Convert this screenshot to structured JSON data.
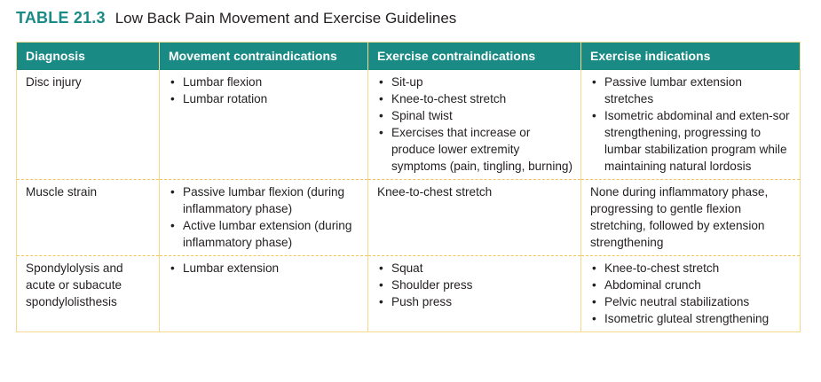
{
  "table": {
    "number": "TABLE 21.3",
    "title": "Low Back Pain Movement and Exercise Guidelines",
    "headers": [
      "Diagnosis",
      "Movement contraindications",
      "Exercise contraindications",
      "Exercise indications"
    ],
    "rows": [
      {
        "diagnosis": "Disc injury",
        "movement": [
          "Lumbar flexion",
          "Lumbar rotation"
        ],
        "exercise_contra": [
          "Sit-up",
          "Knee-to-chest stretch",
          "Spinal twist",
          "Exercises that increase or produce lower extremity symptoms (pain, tingling, burning)"
        ],
        "exercise_ind": [
          "Passive lumbar extension stretches",
          "Isometric abdominal and exten-sor strengthening, progressing to lumbar stabilization program while maintaining natural lordosis"
        ]
      },
      {
        "diagnosis": "Muscle strain",
        "movement": [
          "Passive lumbar flexion (during inflammatory phase)",
          "Active lumbar extension (during inflammatory phase)"
        ],
        "exercise_contra_text": "Knee-to-chest stretch",
        "exercise_ind_text": "None during inflammatory phase, progressing to gentle flexion stretching, followed by extension strengthening"
      },
      {
        "diagnosis": "Spondylolysis and acute or subacute spondylolisthesis",
        "movement": [
          "Lumbar extension"
        ],
        "exercise_contra": [
          "Squat",
          "Shoulder press",
          "Push press"
        ],
        "exercise_ind": [
          "Knee-to-chest stretch",
          "Abdominal crunch",
          "Pelvic neutral stabilizations",
          "Isometric gluteal strengthening"
        ]
      }
    ]
  }
}
